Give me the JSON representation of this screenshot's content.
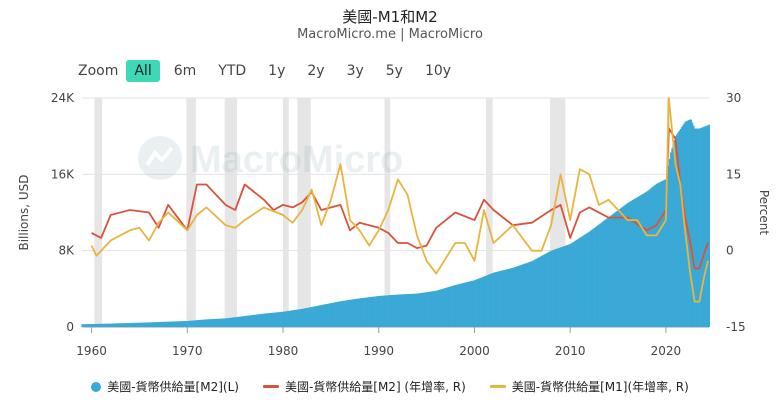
{
  "title": "美國-M1和M2",
  "subtitle": "MacroMicro.me | MacroMicro",
  "watermark": "MacroMicro",
  "zoom": {
    "label": "Zoom",
    "options": [
      "All",
      "6m",
      "YTD",
      "1y",
      "2y",
      "3y",
      "5y",
      "10y"
    ],
    "selected": "All"
  },
  "colors": {
    "m2_level": "#3aa9d6",
    "m2_yoy": "#d9533c",
    "m1_yoy": "#e8b53e",
    "recession": "#e6e6e6"
  },
  "chart_data": {
    "type": "bar",
    "xlim": [
      1959,
      2024.5
    ],
    "x_ticks": [
      "1960",
      "1970",
      "1980",
      "1990",
      "2000",
      "2010",
      "2020"
    ],
    "y_left": {
      "label": "Billions, USD",
      "ylim": [
        0,
        24000
      ],
      "ticks": [
        "0",
        "8K",
        "16K",
        "24K"
      ]
    },
    "y_right": {
      "label": "Percent",
      "ylim": [
        -15,
        30
      ],
      "ticks": [
        "-15",
        "0",
        "15",
        "30"
      ]
    },
    "recessions": [
      [
        1960.3,
        1961.1
      ],
      [
        1969.9,
        1970.9
      ],
      [
        1973.9,
        1975.2
      ],
      [
        1980.0,
        1980.6
      ],
      [
        1981.5,
        1982.9
      ],
      [
        1990.6,
        1991.2
      ],
      [
        2001.2,
        2001.9
      ],
      [
        2007.9,
        2009.5
      ],
      [
        2020.1,
        2020.4
      ]
    ],
    "series": [
      {
        "name": "美國-貨幣供給量[M2](L)",
        "axis": "left",
        "kind": "bar",
        "x": [
          1959,
          1960,
          1962,
          1964,
          1966,
          1968,
          1970,
          1972,
          1974,
          1976,
          1978,
          1980,
          1982,
          1984,
          1986,
          1988,
          1990,
          1992,
          1994,
          1996,
          1998,
          2000,
          2002,
          2004,
          2006,
          2008,
          2010,
          2012,
          2014,
          2016,
          2018,
          2019,
          2020.0,
          2020.5,
          2021,
          2022,
          2022.6,
          2023,
          2023.5,
          2024,
          2024.5
        ],
        "values": [
          290,
          310,
          360,
          420,
          480,
          560,
          630,
          800,
          900,
          1150,
          1400,
          1600,
          1900,
          2300,
          2700,
          3000,
          3250,
          3400,
          3500,
          3800,
          4400,
          4900,
          5700,
          6200,
          6900,
          8000,
          8700,
          10000,
          11500,
          13000,
          14200,
          15000,
          15500,
          18300,
          20000,
          21500,
          21800,
          20800,
          20800,
          21000,
          21200
        ]
      },
      {
        "name": "美國-貨幣供給量[M2] (年增率, R)",
        "axis": "right",
        "kind": "line",
        "x": [
          1960,
          1961,
          1962,
          1964,
          1966,
          1967,
          1968,
          1970,
          1971,
          1972,
          1974,
          1975,
          1976,
          1978,
          1979,
          1980,
          1981,
          1982,
          1983,
          1984,
          1986,
          1987,
          1988,
          1990,
          1991,
          1992,
          1993,
          1994,
          1995,
          1996,
          1998,
          2000,
          2001,
          2002,
          2004,
          2006,
          2008,
          2009,
          2010,
          2011,
          2012,
          2014,
          2016,
          2018,
          2019,
          2020.0,
          2020.3,
          2021,
          2021.5,
          2022,
          2022.5,
          2023,
          2023.5,
          2024,
          2024.4
        ],
        "values": [
          3.5,
          2.5,
          7,
          8,
          7.5,
          4.5,
          9,
          4,
          13,
          13,
          9,
          8,
          13,
          10,
          8,
          9,
          8.5,
          9.5,
          11.5,
          8,
          9,
          4,
          5.5,
          4.5,
          3.5,
          1.5,
          1.5,
          0.5,
          1,
          4.5,
          7.5,
          6,
          10,
          8,
          5,
          5.5,
          8,
          9,
          2.5,
          7.5,
          8.5,
          6.5,
          6.5,
          4,
          5,
          8,
          24,
          22,
          13,
          6.5,
          2,
          -3.5,
          -3.5,
          -0.5,
          1.5
        ]
      },
      {
        "name": "美國-貨幣供給量[M1](年增率, R)",
        "axis": "right",
        "kind": "line",
        "x": [
          1960,
          1960.5,
          1962,
          1964,
          1965,
          1966,
          1967,
          1968,
          1970,
          1971,
          1972,
          1974,
          1975,
          1976,
          1978,
          1980,
          1981,
          1982,
          1983,
          1984,
          1985,
          1986,
          1987,
          1988,
          1989,
          1990,
          1991,
          1992,
          1993,
          1994,
          1995,
          1996,
          1998,
          1999,
          2000,
          2001,
          2002,
          2004,
          2006,
          2007,
          2008,
          2009,
          2010,
          2011,
          2012,
          2013,
          2014,
          2016,
          2017,
          2018,
          2019,
          2020.0,
          2020.3,
          2021,
          2021.5,
          2022,
          2022.5,
          2023,
          2023.5,
          2024,
          2024.4
        ],
        "values": [
          1,
          -1,
          2,
          4,
          4.5,
          2,
          5.5,
          7.5,
          4,
          7,
          8.5,
          5,
          4.5,
          6,
          8.5,
          7,
          5.5,
          8,
          12,
          5,
          10,
          17,
          6,
          4,
          1,
          4,
          8,
          14,
          11,
          3,
          -2,
          -4.5,
          1.5,
          1.5,
          -2,
          8,
          1.5,
          5,
          0,
          0,
          5,
          15,
          6,
          16,
          15,
          9,
          10,
          6,
          6,
          3,
          3,
          6,
          35,
          17,
          13,
          4,
          -4,
          -10,
          -10,
          -5,
          -2
        ]
      }
    ]
  }
}
